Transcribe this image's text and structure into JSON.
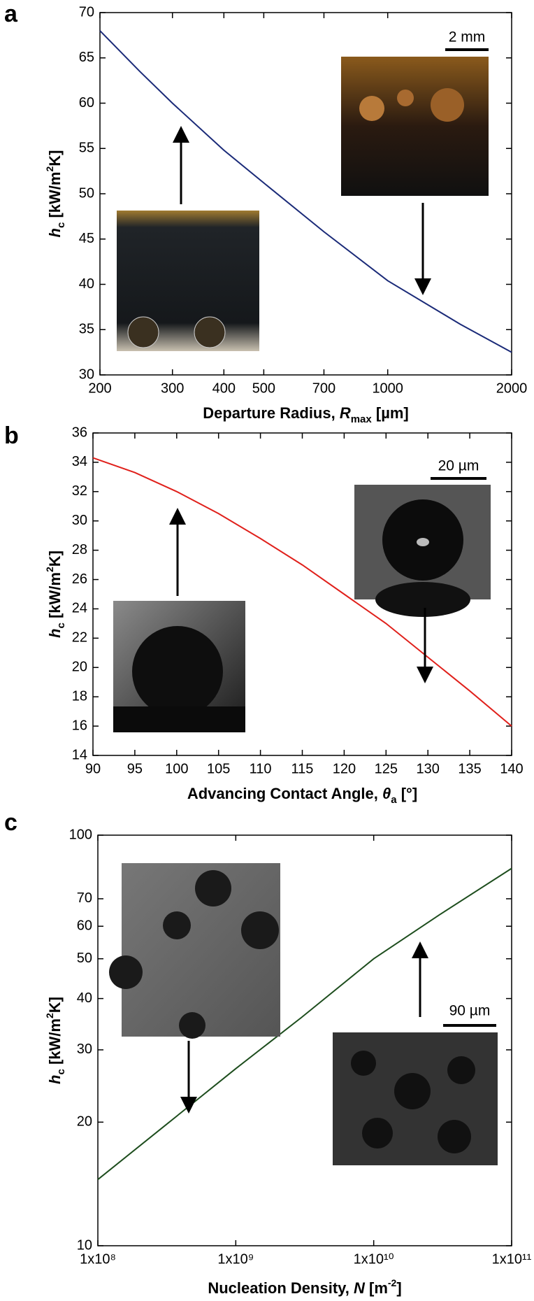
{
  "chart_data": [
    {
      "type": "line",
      "panel_label": "a",
      "xlabel_parts": [
        "Departure Radius,  ",
        "R",
        "max",
        " [µm]"
      ],
      "ylabel_parts": [
        "h",
        "c",
        " [kW/m",
        "2",
        "K]"
      ],
      "xscale": "log",
      "xlim": [
        200,
        2000
      ],
      "xticks": [
        200,
        300,
        400,
        500,
        700,
        1000,
        2000
      ],
      "ylim": [
        30,
        70
      ],
      "yticks": [
        30,
        35,
        40,
        45,
        50,
        55,
        60,
        65,
        70
      ],
      "x": [
        200,
        250,
        300,
        400,
        500,
        700,
        1000,
        1500,
        2000
      ],
      "series": [
        {
          "color": "#1a2a78",
          "values": [
            68,
            63.5,
            60,
            54.8,
            51.2,
            45.8,
            40.4,
            35.6,
            32.5
          ]
        }
      ],
      "annotations": [
        "2 mm"
      ]
    },
    {
      "type": "line",
      "panel_label": "b",
      "xlabel_parts": [
        "Advancing Contact Angle,  ",
        "θ",
        "a",
        " [°]"
      ],
      "ylabel_parts": [
        "h",
        "c",
        " [kW/m",
        "2",
        "K]"
      ],
      "xscale": "linear",
      "xlim": [
        90,
        140
      ],
      "xticks": [
        90,
        95,
        100,
        105,
        110,
        115,
        120,
        125,
        130,
        135,
        140
      ],
      "ylim": [
        14,
        36
      ],
      "yticks": [
        14,
        16,
        18,
        20,
        22,
        24,
        26,
        28,
        30,
        32,
        34,
        36
      ],
      "x": [
        90,
        95,
        100,
        105,
        110,
        115,
        120,
        125,
        130,
        135,
        140
      ],
      "series": [
        {
          "color": "#e0201b",
          "values": [
            34.3,
            33.3,
            32,
            30.5,
            28.8,
            27,
            25,
            23,
            20.7,
            18.4,
            16
          ]
        }
      ],
      "annotations": [
        "20 µm"
      ]
    },
    {
      "type": "line",
      "panel_label": "c",
      "xlabel_parts": [
        "Nucleation Density,  ",
        "N",
        " [m",
        "-2",
        "]"
      ],
      "ylabel_parts": [
        "h",
        "c",
        " [kW/m",
        "2",
        "K]"
      ],
      "xscale": "log",
      "yscale": "log",
      "xlim": [
        100000000,
        100000000000
      ],
      "xticks": [
        {
          "value": 100000000,
          "label": "1x10⁸"
        },
        {
          "value": 1000000000,
          "label": "1x10⁹"
        },
        {
          "value": 10000000000,
          "label": "1x10¹⁰"
        },
        {
          "value": 100000000000,
          "label": "1x10¹¹"
        }
      ],
      "ylim": [
        10,
        100
      ],
      "yticks": [
        10,
        20,
        30,
        40,
        50,
        60,
        70,
        100
      ],
      "x": [
        100000000,
        300000000,
        1000000000,
        3000000000,
        10000000000,
        30000000000,
        100000000000
      ],
      "series": [
        {
          "color": "#1d4d1d",
          "values": [
            14.5,
            19.5,
            27,
            36,
            50,
            64,
            83
          ]
        }
      ],
      "annotations": [
        "90 µm"
      ]
    }
  ]
}
